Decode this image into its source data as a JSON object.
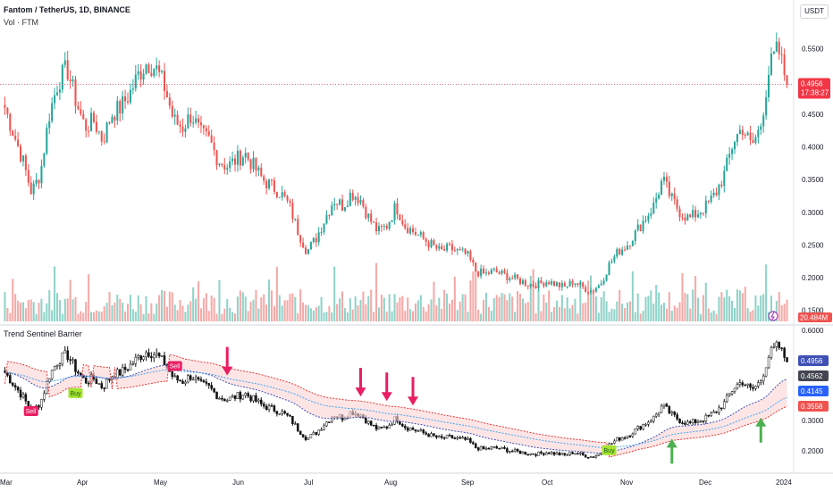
{
  "header": {
    "title": "Fantom / TetherUS, 1D, BINANCE",
    "volume_label": "Vol · FTM",
    "currency": "USDT",
    "indicator_label": "Trend Sentinel Barrier"
  },
  "colors": {
    "up": "#26a69a",
    "down": "#ef5350",
    "vol_up": "#8fd3c8",
    "vol_down": "#f5a9a7",
    "price_line": "#f23645",
    "band_fill": "#fbd3d3",
    "upper_band": "#e53935",
    "lower_band": "#3f51b5",
    "mid_band": "#42a5f5",
    "sell_marker": "#e91e63",
    "buy_marker": "#a5e32f",
    "up_arrow": "#4caf50",
    "down_arrow": "#e91e63"
  },
  "chart_data": [
    {
      "type": "candlestick",
      "title": "Fantom / TetherUS, 1D, BINANCE",
      "x_labels": [
        "Mar",
        "Apr",
        "May",
        "Jun",
        "Jul",
        "Aug",
        "Sep",
        "Oct",
        "Nov",
        "Dec",
        "2024"
      ],
      "y_ticks": [
        "0.5500",
        "0.4500",
        "0.4000",
        "0.3500",
        "0.3000",
        "0.2500",
        "0.2000",
        "0.1500"
      ],
      "ylim": [
        0.14,
        0.57
      ],
      "last_price": "0.4956",
      "countdown": "17:38:27",
      "volume_last": "20.484M",
      "price_path": [
        0.46,
        0.42,
        0.38,
        0.33,
        0.36,
        0.45,
        0.5,
        0.52,
        0.47,
        0.43,
        0.44,
        0.41,
        0.45,
        0.46,
        0.48,
        0.51,
        0.53,
        0.52,
        0.49,
        0.44,
        0.43,
        0.45,
        0.42,
        0.41,
        0.38,
        0.37,
        0.38,
        0.39,
        0.37,
        0.35,
        0.34,
        0.33,
        0.31,
        0.27,
        0.24,
        0.26,
        0.29,
        0.32,
        0.31,
        0.33,
        0.32,
        0.29,
        0.27,
        0.28,
        0.31,
        0.28,
        0.27,
        0.26,
        0.25,
        0.24,
        0.245,
        0.24,
        0.235,
        0.21,
        0.205,
        0.21,
        0.205,
        0.2,
        0.195,
        0.19,
        0.19,
        0.195,
        0.19,
        0.185,
        0.195,
        0.185,
        0.18,
        0.19,
        0.22,
        0.24,
        0.25,
        0.27,
        0.29,
        0.31,
        0.35,
        0.32,
        0.3,
        0.29,
        0.3,
        0.31,
        0.33,
        0.36,
        0.41,
        0.43,
        0.4,
        0.43,
        0.52,
        0.55,
        0.4956
      ]
    },
    {
      "type": "line",
      "title": "Trend Sentinel Barrier",
      "y_ticks": [
        "0.6000",
        "0.5000",
        "0.4000",
        "0.3000",
        "0.2000"
      ],
      "ylim": [
        0.17,
        0.6
      ],
      "value_labels": [
        {
          "value": "0.4956",
          "color": "#3f51b5"
        },
        {
          "value": "0.4562",
          "color": "#434651"
        },
        {
          "value": "0.4145",
          "color": "#2962ff"
        },
        {
          "value": "0.3558",
          "color": "#ef5350"
        }
      ],
      "signals": [
        {
          "label": "Sell",
          "type": "sell",
          "bar": 3,
          "value": 0.33
        },
        {
          "label": "Buy",
          "type": "buy",
          "bar": 8,
          "value": 0.39
        },
        {
          "label": "Sell",
          "type": "sell",
          "bar": 19,
          "value": 0.48
        },
        {
          "label": "Buy",
          "type": "buy",
          "bar": 68,
          "value": 0.2
        }
      ],
      "arrows": [
        {
          "direction": "down",
          "bar": 25,
          "value": 0.45
        },
        {
          "direction": "down",
          "bar": 40,
          "value": 0.38
        },
        {
          "direction": "down",
          "bar": 43,
          "value": 0.365
        },
        {
          "direction": "down",
          "bar": 46,
          "value": 0.35
        },
        {
          "direction": "up",
          "bar": 75,
          "value": 0.24
        },
        {
          "direction": "up",
          "bar": 85,
          "value": 0.31
        }
      ]
    }
  ]
}
